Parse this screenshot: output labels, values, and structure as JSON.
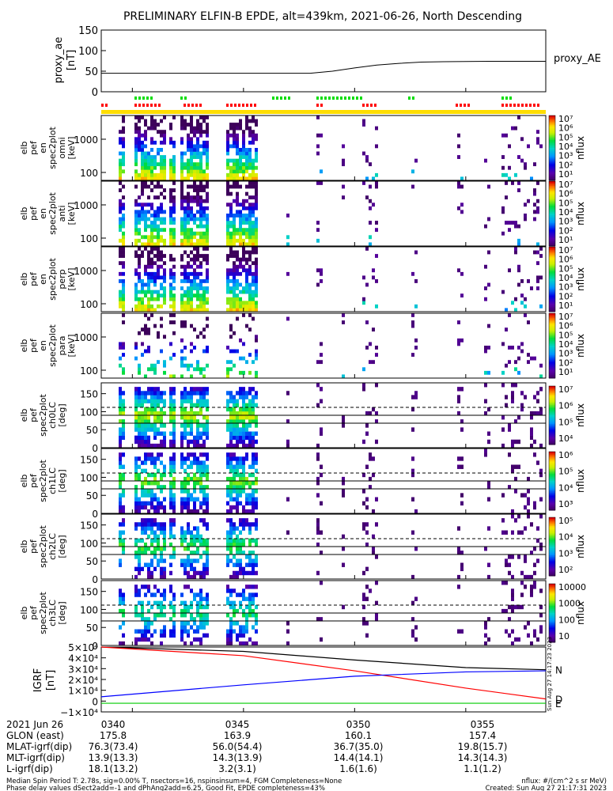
{
  "chart_data": {
    "type": "heatmap",
    "title": "PRELIMINARY ELFIN-B EPDE, alt=439km, 2021-06-26, North Descending",
    "time_ticks": [
      "0340",
      "0345",
      "0350",
      "0355"
    ],
    "proxy_ae": {
      "ylabel": [
        "proxy_ae",
        "[nT]"
      ],
      "yticks": [
        "150",
        "100",
        "50",
        "0"
      ],
      "ylim": [
        0,
        150
      ],
      "legend": "proxy_AE",
      "values": [
        {
          "t": "03:38.6",
          "ae": 45
        },
        {
          "t": "03:40",
          "ae": 45
        },
        {
          "t": "03:42",
          "ae": 45
        },
        {
          "t": "03:44",
          "ae": 45
        },
        {
          "t": "03:46",
          "ae": 45
        },
        {
          "t": "03:48",
          "ae": 45
        },
        {
          "t": "03:49",
          "ae": 50
        },
        {
          "t": "03:50",
          "ae": 58
        },
        {
          "t": "03:51",
          "ae": 65
        },
        {
          "t": "03:52",
          "ae": 69
        },
        {
          "t": "03:53",
          "ae": 72
        },
        {
          "t": "03:54",
          "ae": 73
        },
        {
          "t": "03:56",
          "ae": 74
        },
        {
          "t": "03:58.6",
          "ae": 74
        }
      ]
    },
    "spectra_panels": [
      {
        "ylabel": [
          "elb",
          "pef",
          "en",
          "spec2plot",
          "omni",
          "[keV]"
        ],
        "yticks": [
          "1000",
          "100"
        ],
        "cbar_label": "nflux",
        "cbar_ticks": [
          "10⁷",
          "10⁶",
          "10⁵",
          "10⁴",
          "10³",
          "10²",
          "10¹"
        ]
      },
      {
        "ylabel": [
          "elb",
          "pef",
          "en",
          "spec2plot",
          "anti",
          "[keV]"
        ],
        "yticks": [
          "1000",
          "100"
        ],
        "cbar_label": "nflux",
        "cbar_ticks": [
          "10⁷",
          "10⁶",
          "10⁵",
          "10⁴",
          "10³",
          "10²",
          "10¹"
        ]
      },
      {
        "ylabel": [
          "elb",
          "pef",
          "en",
          "spec2plot",
          "perp",
          "[keV]"
        ],
        "yticks": [
          "1000",
          "100"
        ],
        "cbar_label": "nflux",
        "cbar_ticks": [
          "10⁷",
          "10⁶",
          "10⁵",
          "10⁴",
          "10³",
          "10²",
          "10¹"
        ]
      },
      {
        "ylabel": [
          "elb",
          "pef",
          "en",
          "spec2plot",
          "para",
          "[keV]"
        ],
        "yticks": [
          "1000",
          "100"
        ],
        "cbar_label": "nflux",
        "cbar_ticks": [
          "10⁷",
          "10⁶",
          "10⁵",
          "10⁴",
          "10³",
          "10²",
          "10¹"
        ]
      }
    ],
    "pitch_panels": [
      {
        "ylabel": [
          "elb",
          "pef",
          "spec2plot",
          "ch0LC",
          "[deg]"
        ],
        "yticks": [
          "150",
          "100",
          "50",
          "0"
        ],
        "cbar_label": "nflux",
        "cbar_ticks": [
          "10⁷",
          "10⁶",
          "10⁵",
          "10⁴"
        ]
      },
      {
        "ylabel": [
          "elb",
          "pef",
          "spec2plot",
          "ch1LC",
          "[deg]"
        ],
        "yticks": [
          "150",
          "100",
          "50",
          "0"
        ],
        "cbar_label": "nflux",
        "cbar_ticks": [
          "10⁶",
          "10⁵",
          "10⁴",
          "10³"
        ]
      },
      {
        "ylabel": [
          "elb",
          "pef",
          "spec2plot",
          "ch2LC",
          "[deg]"
        ],
        "yticks": [
          "150",
          "100",
          "50",
          "0"
        ],
        "cbar_label": "nflux",
        "cbar_ticks": [
          "10⁵",
          "10⁴",
          "10³",
          "10²"
        ]
      },
      {
        "ylabel": [
          "elb",
          "pef",
          "spec2plot",
          "ch3LC",
          "[deg]"
        ],
        "yticks": [
          "150",
          "100",
          "50",
          "0"
        ],
        "cbar_label": "nflux",
        "cbar_ticks": [
          "10000",
          "1000",
          "100",
          "10"
        ]
      }
    ],
    "igrf": {
      "ylabel": [
        "IGRF",
        "[nT]"
      ],
      "yticks": [
        "5×10⁴",
        "4×10⁴",
        "3×10⁴",
        "2×10⁴",
        "1×10⁴",
        "0",
        "−1×10⁴"
      ],
      "ylim": [
        -10000,
        50000
      ],
      "series": [
        {
          "name": "N",
          "color": "#000000",
          "values": [
            {
              "t": "03:38.6",
              "v": 50000
            },
            {
              "t": "03:45",
              "v": 46000
            },
            {
              "t": "03:50",
              "v": 38000
            },
            {
              "t": "03:55",
              "v": 31000
            },
            {
              "t": "03:58.6",
              "v": 29000
            }
          ]
        },
        {
          "name": "D",
          "color": "#ff0000",
          "values": [
            {
              "t": "03:38.6",
              "v": 50000
            },
            {
              "t": "03:45",
              "v": 42000
            },
            {
              "t": "03:50",
              "v": 28000
            },
            {
              "t": "03:55",
              "v": 12000
            },
            {
              "t": "03:58.6",
              "v": 2000
            }
          ]
        },
        {
          "name": "E",
          "color": "#00cc00",
          "values": [
            {
              "t": "03:38.6",
              "v": -2000
            },
            {
              "t": "03:58.6",
              "v": -2000
            }
          ]
        },
        {
          "name": "",
          "color": "#0000ff",
          "values": [
            {
              "t": "03:38.6",
              "v": 4000
            },
            {
              "t": "03:45",
              "v": 15000
            },
            {
              "t": "03:50",
              "v": 23000
            },
            {
              "t": "03:55",
              "v": 27000
            },
            {
              "t": "03:58.6",
              "v": 28000
            }
          ]
        }
      ]
    },
    "vertical_stamp": "Sun Aug 27 14:17:23 2023"
  },
  "footer": {
    "rows": [
      {
        "label": "2021 Jun 26",
        "values": [
          "0340",
          "0345",
          "0350",
          "0355"
        ]
      },
      {
        "label": "GLON (east)",
        "values": [
          "175.8",
          "163.9",
          "160.1",
          "157.4"
        ]
      },
      {
        "label": "MLAT-igrf(dip)",
        "values": [
          "76.3(73.4)",
          "56.0(54.4)",
          "36.7(35.0)",
          "19.8(15.7)"
        ]
      },
      {
        "label": "MLT-igrf(dip)",
        "values": [
          "13.9(13.3)",
          "14.3(13.9)",
          "14.4(14.1)",
          "14.3(14.3)"
        ]
      },
      {
        "label": "L-igrf(dip)",
        "values": [
          "18.1(13.2)",
          "3.2(3.1)",
          "1.6(1.6)",
          "1.1(1.2)"
        ]
      }
    ],
    "note1": "Median Spin Period T: 2.78s, sig=0.00% T, nsectors=16, nspinsinsum=4, FGM Completeness=None",
    "note2": "Phase delay values dSect2add=-1 and dPhAng2add=6.25, Good Fit, EPDE completeness=43%",
    "units": "nflux: #/(cm^2 s sr MeV)",
    "created": "Created: Sun Aug 27 21:17:31 2023"
  },
  "colors": {
    "accent_yellow": "#ffdd00",
    "marker_red": "#ff0000",
    "marker_green": "#00dd00"
  }
}
